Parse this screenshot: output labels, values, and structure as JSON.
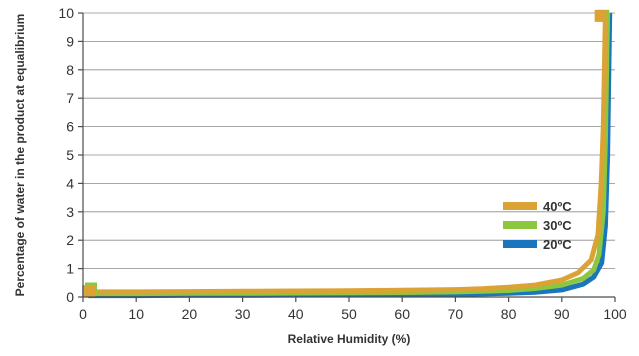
{
  "chart_data": {
    "type": "line",
    "title": "",
    "xlabel": "Relative Humidity (%)",
    "ylabel": "Percentage of water in the product at equalibrium",
    "xlim": [
      0,
      100
    ],
    "ylim": [
      0,
      10
    ],
    "x_ticks": [
      0,
      10,
      20,
      30,
      40,
      50,
      60,
      70,
      80,
      90,
      100
    ],
    "y_ticks": [
      0,
      1,
      2,
      3,
      4,
      5,
      6,
      7,
      8,
      9,
      10
    ],
    "grid": "horizontal",
    "legend_position": "right",
    "series": [
      {
        "name": "20ºC",
        "color": "#1a75bc",
        "x": [
          1,
          10,
          20,
          30,
          40,
          50,
          60,
          70,
          75,
          80,
          85,
          90,
          94,
          96,
          97.5,
          98.2,
          98.6,
          98.8,
          99
        ],
        "y": [
          0.05,
          0.05,
          0.06,
          0.06,
          0.07,
          0.08,
          0.09,
          0.1,
          0.11,
          0.13,
          0.17,
          0.25,
          0.45,
          0.7,
          1.2,
          2.5,
          5.0,
          7.5,
          10
        ]
      },
      {
        "name": "30ºC",
        "color": "#8dc63f",
        "x": [
          1,
          10,
          20,
          30,
          40,
          50,
          60,
          70,
          75,
          80,
          85,
          90,
          94,
          96,
          97,
          97.8,
          98.2,
          98.4,
          98.6
        ],
        "y": [
          0.12,
          0.12,
          0.13,
          0.13,
          0.14,
          0.15,
          0.16,
          0.18,
          0.2,
          0.23,
          0.3,
          0.42,
          0.65,
          0.95,
          1.5,
          3.0,
          5.5,
          7.8,
          10
        ]
      },
      {
        "name": "40ºC",
        "color": "#dba335",
        "x": [
          1,
          10,
          20,
          30,
          40,
          50,
          60,
          70,
          75,
          80,
          85,
          90,
          93,
          95.5,
          96.8,
          97.4,
          97.8,
          98,
          98.2
        ],
        "y": [
          0.18,
          0.18,
          0.19,
          0.2,
          0.21,
          0.22,
          0.24,
          0.26,
          0.29,
          0.34,
          0.42,
          0.6,
          0.85,
          1.3,
          2.2,
          4.0,
          6.0,
          8.0,
          10
        ]
      }
    ],
    "endpoint_markers": [
      {
        "series": "20ºC",
        "x": 1,
        "y": 0.2
      },
      {
        "series": "30ºC",
        "x": 1.5,
        "y": 0.3
      },
      {
        "series": "40ºC",
        "x": 1.2,
        "y": 0.2
      },
      {
        "series": "30ºC",
        "x": 97.8,
        "y": 9.9
      },
      {
        "series": "40ºC",
        "x": 97.3,
        "y": 9.9
      }
    ],
    "legend": [
      {
        "label": "40ºC",
        "color": "#dba335"
      },
      {
        "label": "30ºC",
        "color": "#8dc63f"
      },
      {
        "label": "20ºC",
        "color": "#1a75bc"
      }
    ]
  }
}
